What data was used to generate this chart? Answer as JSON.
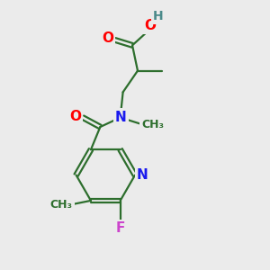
{
  "bg_color": "#ebebeb",
  "bond_color": "#2d6e2d",
  "bond_width": 1.6,
  "atom_colors": {
    "O": "#ff0000",
    "N": "#1a1aee",
    "F": "#cc44cc",
    "H": "#4a8a8a",
    "C": "#2d6e2d"
  },
  "font_size_atom": 11,
  "font_size_small": 9
}
